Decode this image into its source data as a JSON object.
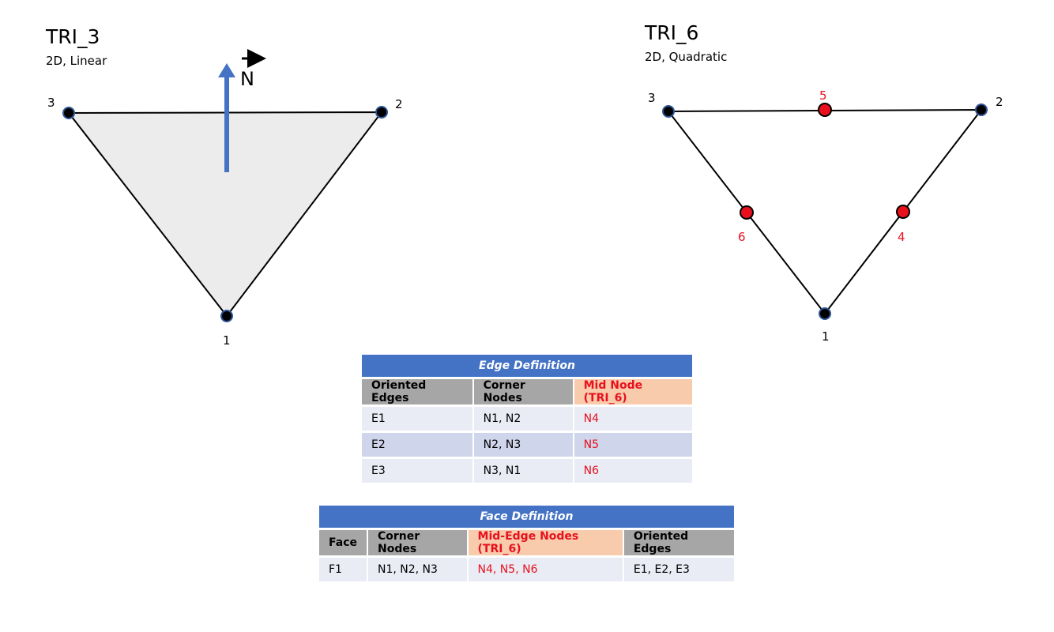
{
  "tri3": {
    "title": "TRI_3",
    "subtitle": "2D, Linear",
    "normal_label": "N",
    "node_labels": [
      "1",
      "2",
      "3"
    ]
  },
  "tri6": {
    "title": "TRI_6",
    "subtitle": "2D, Quadratic",
    "corner_labels": [
      "1",
      "2",
      "3"
    ],
    "mid_labels": [
      "4",
      "5",
      "6"
    ]
  },
  "colors": {
    "fill": "#ececec",
    "arrow": "#4472c4",
    "mid_node": "#e8101c",
    "header_blue": "#4472c4",
    "header_gray": "#a6a6a6",
    "header_peach": "#f8cbad"
  },
  "edge_table": {
    "caption": "Edge Definition",
    "headers": [
      "Oriented Edges",
      "Corner Nodes",
      "Mid Node (TRI_6)"
    ],
    "rows": [
      [
        "E1",
        "N1, N2",
        "N4"
      ],
      [
        "E2",
        "N2, N3",
        "N5"
      ],
      [
        "E3",
        "N3, N1",
        "N6"
      ]
    ]
  },
  "face_table": {
    "caption": "Face Definition",
    "headers": [
      "Face",
      "Corner Nodes",
      "Mid-Edge Nodes (TRI_6)",
      "Oriented Edges"
    ],
    "rows": [
      [
        "F1",
        "N1, N2, N3",
        "N4, N5, N6",
        "E1, E2, E3"
      ]
    ]
  }
}
